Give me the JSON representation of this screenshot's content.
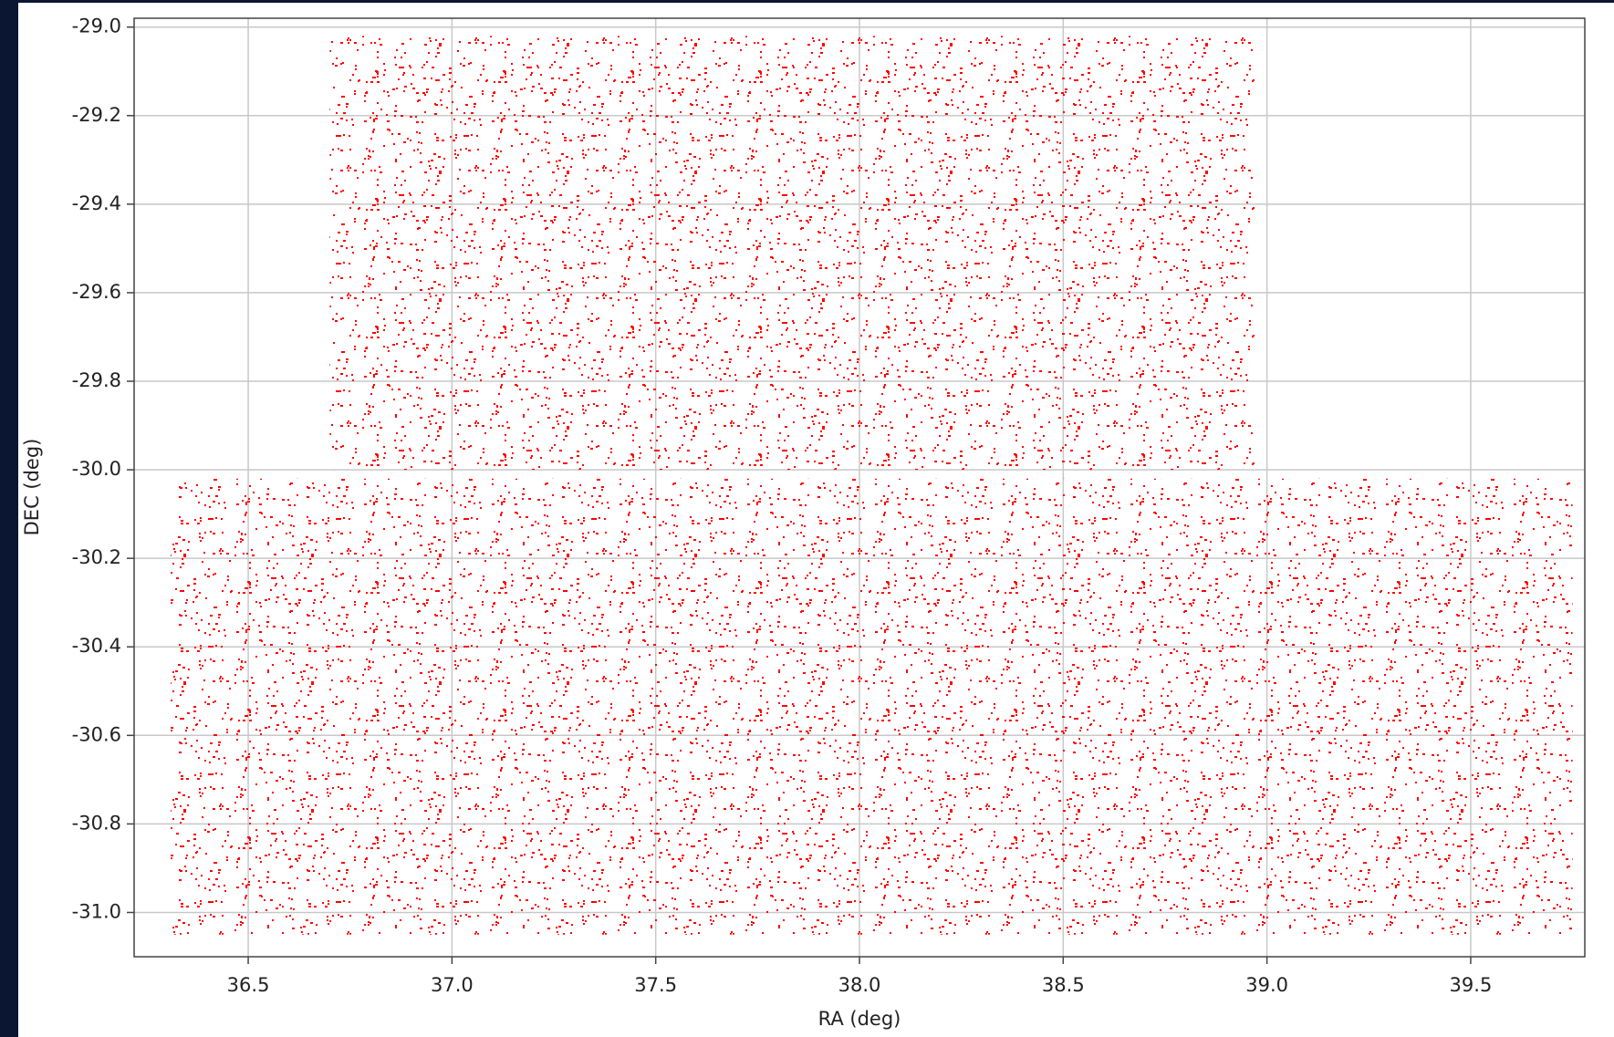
{
  "chart_data": {
    "type": "scatter",
    "x_label": "RA (deg)",
    "y_label": "DEC (deg)",
    "color": "#ff0000",
    "grid": true,
    "regions": [
      {
        "x": [
          36.7,
          38.97
        ],
        "y": [
          -30.0,
          -29.02
        ]
      },
      {
        "x": [
          36.31,
          39.75
        ],
        "y": [
          -31.05,
          -30.02
        ]
      }
    ],
    "xlim": [
      36.22,
      39.78
    ],
    "ylim": [
      -31.1,
      -28.98
    ],
    "xticks": [
      36.5,
      {
        "value": 37,
        "label": "37.0"
      },
      37.5,
      {
        "value": 38,
        "label": "38.0"
      },
      38.5,
      {
        "value": 39,
        "label": "39.0"
      },
      39.5
    ],
    "yticks": [
      {
        "value": -29,
        "label": "-29.0"
      },
      -29.2,
      -29.4,
      -29.6,
      -29.8,
      {
        "value": -30,
        "label": "-30.0"
      },
      -30.2,
      -30.4,
      -30.6,
      -30.8,
      {
        "value": -31,
        "label": "-31.0"
      }
    ]
  }
}
